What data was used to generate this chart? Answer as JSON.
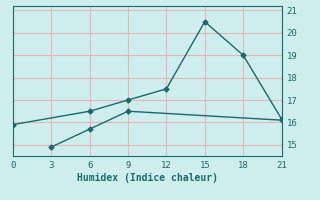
{
  "line1_x": [
    0,
    6,
    9,
    12,
    15,
    18,
    21
  ],
  "line1_y": [
    15.9,
    16.5,
    17.0,
    17.5,
    20.5,
    19.0,
    16.15
  ],
  "line2_x": [
    3,
    6,
    9,
    21
  ],
  "line2_y": [
    14.9,
    15.7,
    16.5,
    16.1
  ],
  "line_color": "#1a6b6b",
  "bg_color": "#ceeeed",
  "grid_color": "#e8b4b8",
  "xlabel": "Humidex (Indice chaleur)",
  "xlim": [
    0,
    21
  ],
  "ylim": [
    14.5,
    21.2
  ],
  "xticks": [
    0,
    3,
    6,
    9,
    12,
    15,
    18,
    21
  ],
  "yticks": [
    15,
    16,
    17,
    18,
    19,
    20,
    21
  ],
  "figsize": [
    3.2,
    2.0
  ],
  "dpi": 100
}
